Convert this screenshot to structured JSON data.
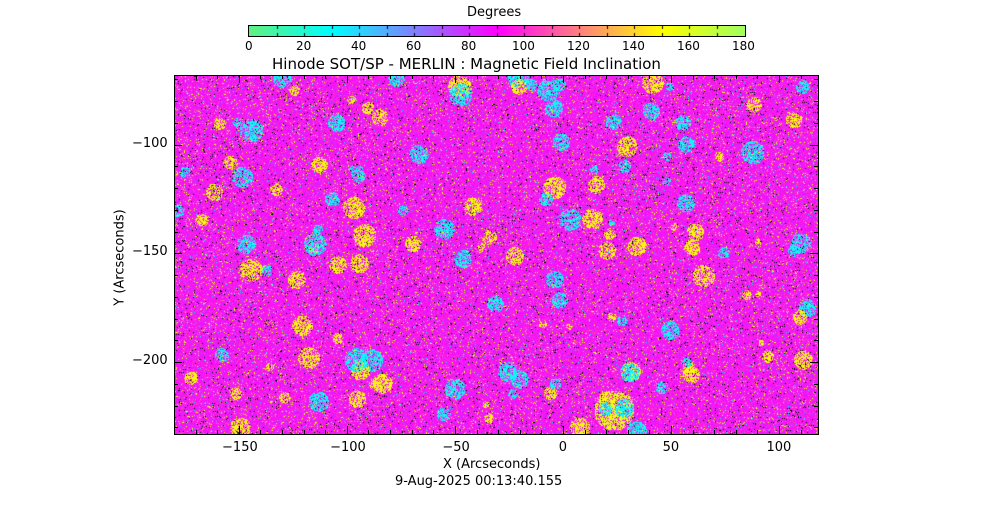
{
  "chart_data": {
    "type": "heatmap",
    "title": "Hinode SOT/SP - MERLIN : Magnetic Field Inclination",
    "xlabel": "X (Arcseconds)",
    "ylabel": "Y (Arcseconds)",
    "timestamp": "9-Aug-2025 00:13:40.155",
    "xlim": [
      -180,
      118
    ],
    "ylim": [
      -233,
      -68
    ],
    "x_ticks": [
      -150,
      -100,
      -50,
      0,
      50,
      100
    ],
    "y_ticks": [
      -100,
      -150,
      -200
    ],
    "x_tick_labels": [
      "−150",
      "−100",
      "−50",
      "0",
      "50",
      "100"
    ],
    "y_tick_labels": [
      "−100",
      "−150",
      "−200"
    ],
    "colorbar": {
      "label": "Degrees",
      "range": [
        0,
        180
      ],
      "ticks": [
        "0",
        "20",
        "40",
        "60",
        "80",
        "100",
        "120",
        "140",
        "160",
        "180"
      ],
      "colors": [
        "#60f080",
        "#00ffff",
        "#8080ff",
        "#ff00ff",
        "#ff8080",
        "#ffff00",
        "#a0ff60"
      ]
    },
    "field_summary": {
      "dominant_value_deg": 90,
      "features": "scattered cyan (~30 deg) and yellow (~150 deg) patches on magenta background"
    }
  }
}
